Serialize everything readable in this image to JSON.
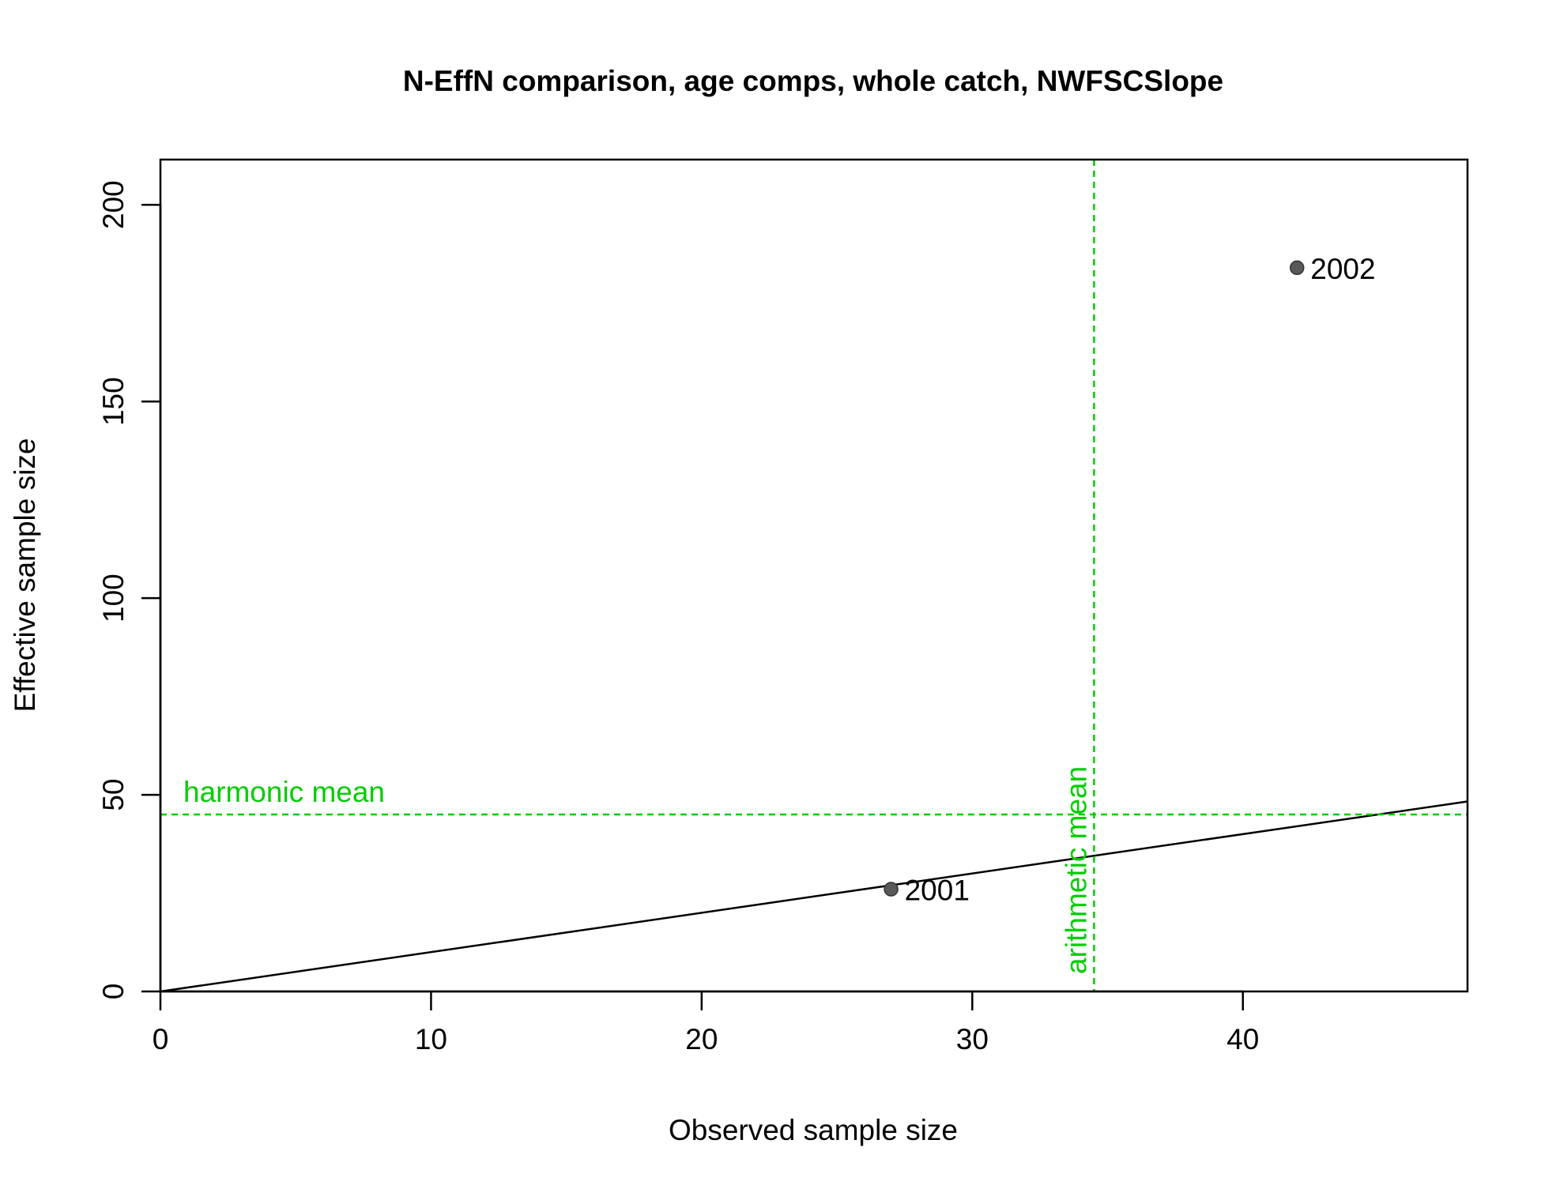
{
  "chart_data": {
    "type": "scatter",
    "title": "N-EffN comparison, age comps, whole catch, NWFSCSlope",
    "xlabel": "Observed sample size",
    "ylabel": "Effective sample size",
    "xlim": [
      0,
      48.3
    ],
    "ylim": [
      0,
      211.5
    ],
    "x_ticks": [
      0,
      10,
      20,
      30,
      40
    ],
    "y_ticks": [
      0,
      50,
      100,
      150,
      200
    ],
    "points": [
      {
        "x": 27,
        "y": 26,
        "label": "2001"
      },
      {
        "x": 42,
        "y": 184,
        "label": "2002"
      }
    ],
    "reference_line": {
      "type": "1:1",
      "intercept": 0,
      "slope": 1
    },
    "harmonic_mean": {
      "label": "harmonic mean",
      "value": 45,
      "color": "#00cd00"
    },
    "arithmetic_mean": {
      "label": "arithmetic mean",
      "value": 34.5,
      "color": "#00cd00"
    },
    "point_color": "#595959",
    "grid": false,
    "legend": "none"
  }
}
